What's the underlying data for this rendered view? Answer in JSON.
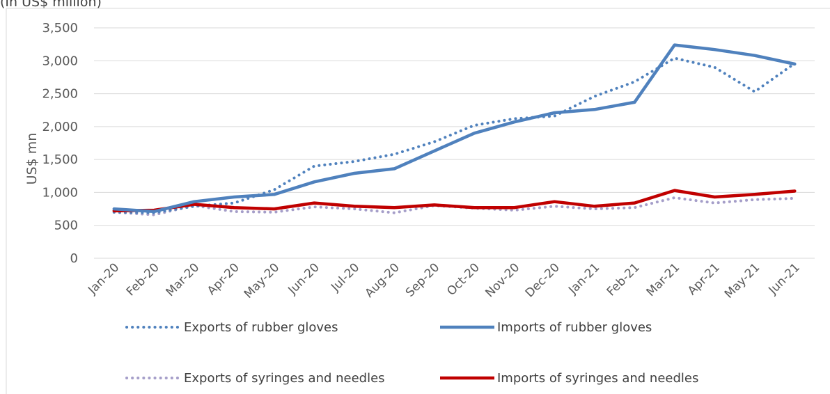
{
  "header": {
    "note": "(In US$ million)"
  },
  "chart_data": {
    "type": "line",
    "title": "",
    "xlabel": "",
    "ylabel": "US$ mn",
    "ylim": [
      0,
      3500
    ],
    "yticks": [
      0,
      500,
      1000,
      1500,
      2000,
      2500,
      3000,
      3500
    ],
    "ytick_labels": [
      "0",
      "500",
      "1,000",
      "1,500",
      "2,000",
      "2,500",
      "3,000",
      "3,500"
    ],
    "grid": true,
    "legend_position": "bottom",
    "categories": [
      "Jan-20",
      "Feb-20",
      "Mar-20",
      "Apr-20",
      "May-20",
      "Jun-20",
      "Jul-20",
      "Aug-20",
      "Sep-20",
      "Oct-20",
      "Nov-20",
      "Dec-20",
      "Jan-21",
      "Feb-21",
      "Mar-21",
      "Apr-21",
      "May-21",
      "Jun-21"
    ],
    "series": [
      {
        "name": "Exports of rubber gloves",
        "color": "#4f81bd",
        "style": "dotted",
        "values": [
          700,
          690,
          790,
          840,
          1040,
          1400,
          1470,
          1580,
          1770,
          2020,
          2120,
          2160,
          2460,
          2680,
          3040,
          2900,
          2530,
          2960
        ]
      },
      {
        "name": "Imports of rubber gloves",
        "color": "#4f81bd",
        "style": "solid",
        "values": [
          750,
          710,
          860,
          930,
          970,
          1160,
          1290,
          1360,
          1630,
          1900,
          2070,
          2210,
          2260,
          2370,
          3240,
          3170,
          3080,
          2950
        ]
      },
      {
        "name": "Exports of syringes and needles",
        "color": "#a59ec9",
        "style": "dotted",
        "values": [
          700,
          660,
          800,
          710,
          700,
          780,
          750,
          690,
          800,
          760,
          730,
          790,
          750,
          770,
          920,
          840,
          890,
          910
        ]
      },
      {
        "name": "Imports of syringes and needles",
        "color": "#c00000",
        "style": "solid",
        "values": [
          720,
          730,
          820,
          770,
          750,
          840,
          790,
          770,
          810,
          770,
          770,
          860,
          790,
          840,
          1030,
          930,
          970,
          1020
        ]
      }
    ]
  }
}
